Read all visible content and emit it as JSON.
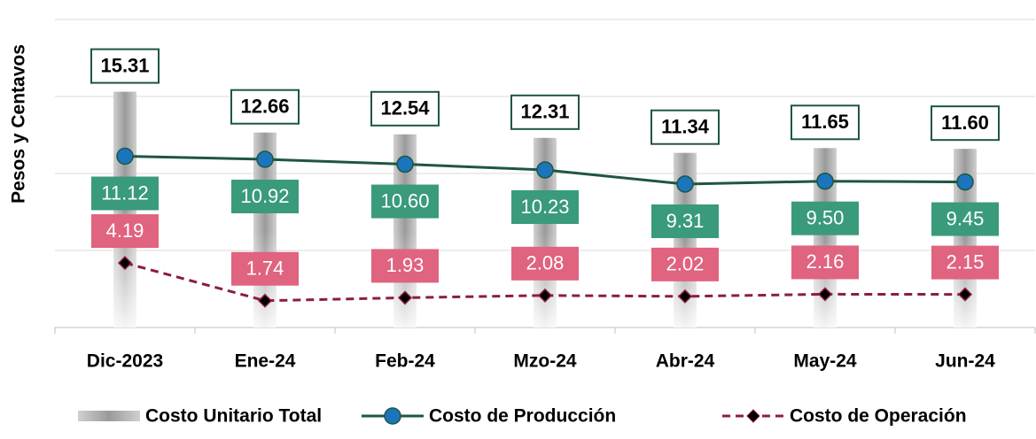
{
  "chart_data": {
    "type": "bar-line",
    "y_label": "Pesos y Centavos",
    "categories": [
      "Dic-2023",
      "Ene-24",
      "Feb-24",
      "Mzo-24",
      "Abr-24",
      "May-24",
      "Jun-24"
    ],
    "ylim": [
      0,
      20
    ],
    "yticks": [
      0,
      5,
      10,
      15,
      20
    ],
    "grid": true,
    "series": [
      {
        "name": "Costo Unitario Total",
        "type": "bar",
        "color": "#a6a6a6",
        "values": [
          15.31,
          12.66,
          12.54,
          12.31,
          11.34,
          11.65,
          11.6
        ],
        "value_labels": [
          "15.31",
          "12.66",
          "12.54",
          "12.31",
          "11.34",
          "11.65",
          "11.60"
        ]
      },
      {
        "name": "Costo de Producción",
        "type": "line",
        "color": "#1e5641",
        "marker_color": "#1b75bc",
        "label_color": "#3a9a7c",
        "values": [
          11.12,
          10.92,
          10.6,
          10.23,
          9.31,
          9.5,
          9.45
        ],
        "value_labels": [
          "11.12",
          "10.92",
          "10.60",
          "10.23",
          "9.31",
          "9.50",
          "9.45"
        ]
      },
      {
        "name": "Costo de Operación",
        "type": "line",
        "dashed": true,
        "color": "#8c1d40",
        "marker_color": "#000000",
        "label_color": "#e0637f",
        "values": [
          4.19,
          1.74,
          1.93,
          2.08,
          2.02,
          2.16,
          2.15
        ],
        "value_labels": [
          "4.19",
          "1.74",
          "1.93",
          "2.08",
          "2.02",
          "2.16",
          "2.15"
        ]
      }
    ]
  }
}
